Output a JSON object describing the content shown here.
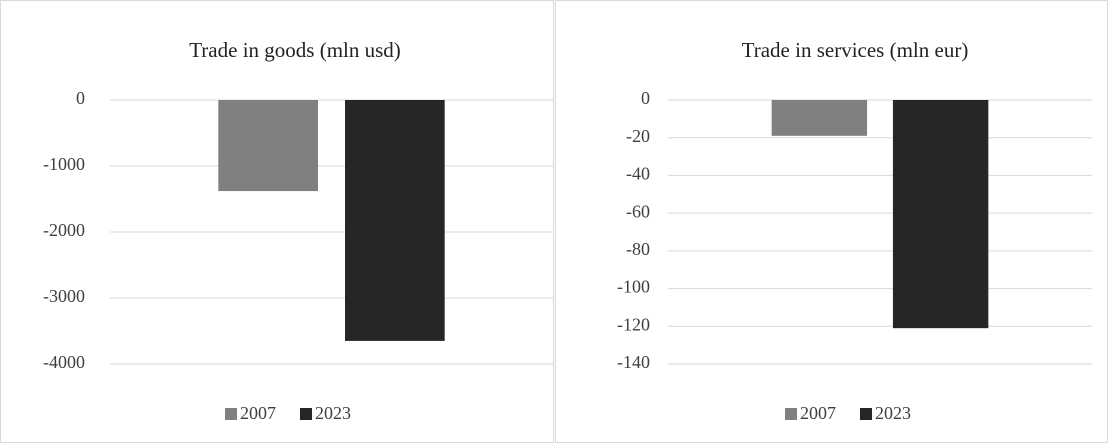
{
  "chart_data": [
    {
      "type": "bar",
      "title": "Trade in goods (mln usd)",
      "categories": [
        null
      ],
      "series": [
        {
          "name": "2007",
          "color": "#808080",
          "values": [
            -1380
          ]
        },
        {
          "name": "2023",
          "color": "#262626",
          "values": [
            -3650
          ]
        }
      ],
      "ylim": [
        -4000,
        0
      ],
      "yticks": [
        0,
        -1000,
        -2000,
        -3000,
        -4000
      ],
      "grid": true,
      "legend": "bottom"
    },
    {
      "type": "bar",
      "title": "Trade in services (mln eur)",
      "categories": [
        null
      ],
      "series": [
        {
          "name": "2007",
          "color": "#808080",
          "values": [
            -19
          ]
        },
        {
          "name": "2023",
          "color": "#262626",
          "values": [
            -121
          ]
        }
      ],
      "ylim": [
        -140,
        0
      ],
      "yticks": [
        0,
        -20,
        -40,
        -60,
        -80,
        -100,
        -120,
        -140
      ],
      "grid": true,
      "legend": "bottom"
    }
  ]
}
